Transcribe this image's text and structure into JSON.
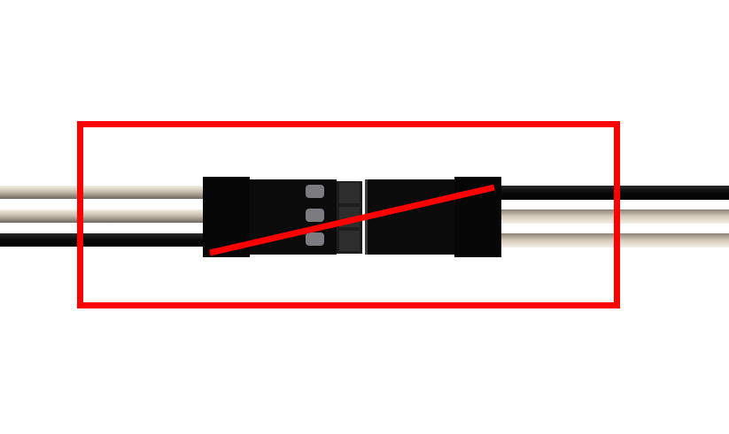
{
  "figure": {
    "description_icon": "connector-crossed-out-icon",
    "colors": {
      "background": "#ffffff",
      "highlight": "#ff0000",
      "wire_dark": "#0a0a0a",
      "wire_light_top": "#f2ede4",
      "wire_light_mid": "#c8beae",
      "wire_light_bottom": "#8b8276",
      "connector_body": "#050505",
      "connector_cap": "#0b0b0b",
      "pin": "#7c7c80",
      "latch": "#2a2a2a"
    },
    "left_wires": [
      "light",
      "light",
      "dark"
    ],
    "right_wires": [
      "dark",
      "light",
      "light"
    ],
    "left_pins": 3,
    "status": "crossed-out"
  }
}
